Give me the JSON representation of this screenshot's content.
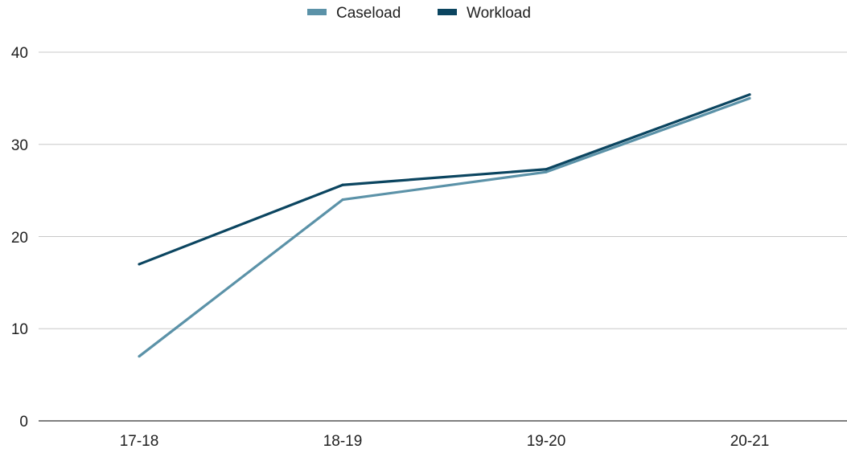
{
  "chart_data": {
    "type": "line",
    "categories": [
      "17-18",
      "18-19",
      "19-20",
      "20-21"
    ],
    "series": [
      {
        "name": "Caseload",
        "color": "#5b92a8",
        "values": [
          7,
          24,
          27,
          35
        ]
      },
      {
        "name": "Workload",
        "color": "#0b4560",
        "values": [
          17,
          25.6,
          27.3,
          35.4
        ]
      }
    ],
    "y_ticks": [
      "0",
      "10",
      "20",
      "30",
      "40"
    ],
    "ylim": [
      0,
      40
    ],
    "grid": true,
    "legend": "top-center"
  }
}
